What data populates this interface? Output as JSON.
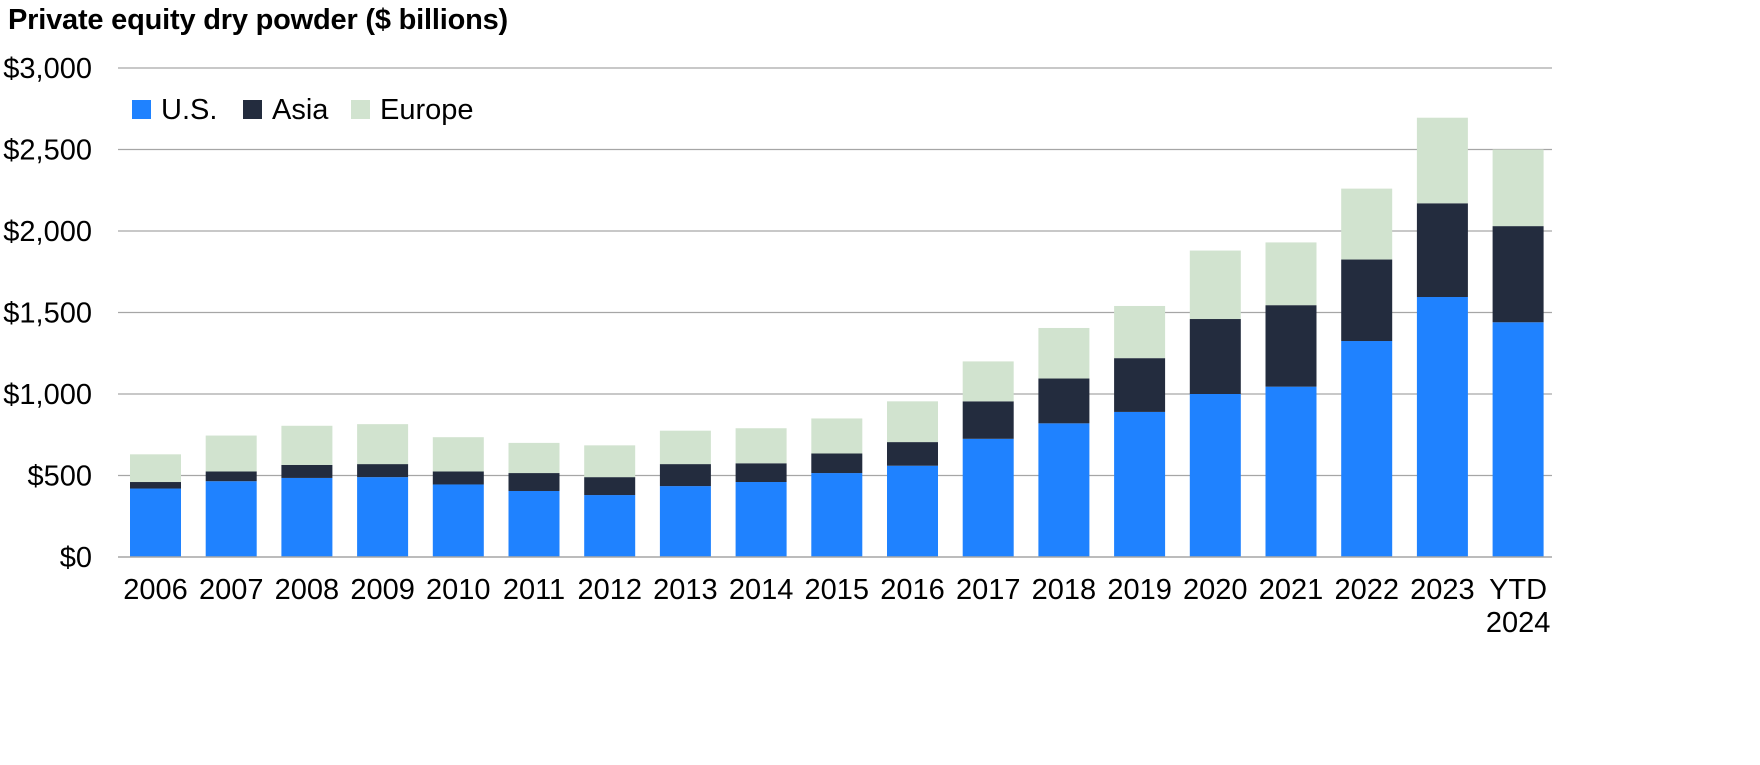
{
  "chart_data": {
    "type": "bar",
    "stacked": true,
    "title": "Private equity dry powder ($ billions)",
    "xlabel": "",
    "ylabel": "",
    "categories": [
      "2006",
      "2007",
      "2008",
      "2009",
      "2010",
      "2011",
      "2012",
      "2013",
      "2014",
      "2015",
      "2016",
      "2017",
      "2018",
      "2019",
      "2020",
      "2021",
      "2022",
      "2023",
      "YTD 2024"
    ],
    "series": [
      {
        "name": "U.S.",
        "color": "#1f82ff",
        "values": [
          420,
          465,
          485,
          490,
          445,
          405,
          380,
          435,
          460,
          515,
          560,
          725,
          820,
          890,
          1000,
          1045,
          1325,
          1595,
          1440
        ]
      },
      {
        "name": "Asia",
        "color": "#232c3e",
        "values": [
          40,
          60,
          80,
          80,
          80,
          110,
          110,
          135,
          115,
          120,
          145,
          230,
          275,
          330,
          460,
          500,
          500,
          575,
          590
        ]
      },
      {
        "name": "Europe",
        "color": "#d1e3cf",
        "values": [
          170,
          220,
          240,
          245,
          210,
          185,
          195,
          205,
          215,
          215,
          250,
          245,
          310,
          320,
          420,
          385,
          435,
          525,
          470
        ]
      }
    ],
    "ylim": [
      0,
      3000
    ],
    "yticks": [
      0,
      500,
      1000,
      1500,
      2000,
      2500,
      3000
    ],
    "ytick_labels": [
      "$0",
      "$500",
      "$1,000",
      "$1,500",
      "$2,000",
      "$2,500",
      "$3,000"
    ],
    "grid": true,
    "legend": "top-left",
    "gridColor": "#a6a6a6"
  }
}
